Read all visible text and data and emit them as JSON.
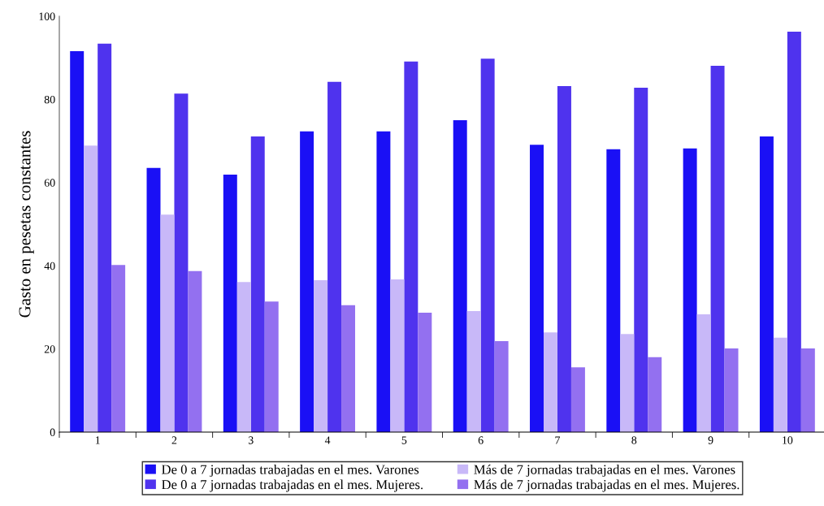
{
  "chart_data": {
    "type": "bar",
    "ylabel": "Gasto en pesetas constantes",
    "categories": [
      "1",
      "2",
      "3",
      "4",
      "5",
      "6",
      "7",
      "8",
      "9",
      "10"
    ],
    "series": [
      {
        "name": "De 0 a 7 jornadas trabajadas en el mes. Varones",
        "color": "#1a10f5",
        "values": [
          91.6,
          63.5,
          61.9,
          72.3,
          72.3,
          75.0,
          69.1,
          68.0,
          68.2,
          71.1
        ]
      },
      {
        "name": "De 0 a 7 jornadas trabajadas en el mes. Mujeres.",
        "color": "#4f33ee",
        "values": [
          93.4,
          81.4,
          71.1,
          84.2,
          89.1,
          89.8,
          83.2,
          82.8,
          88.1,
          96.3
        ]
      },
      {
        "name": "Más de 7 jornadas trabajadas en el mes. Varones",
        "color": "#c8b8f8",
        "values": [
          68.9,
          52.3,
          36.1,
          36.5,
          36.7,
          29.1,
          24.0,
          23.6,
          28.3,
          22.7
        ]
      },
      {
        "name": "Más de 7 jornadas trabajadas en el mes. Mujeres.",
        "color": "#9370f0",
        "values": [
          40.2,
          38.7,
          31.4,
          30.5,
          28.7,
          21.9,
          15.6,
          18.0,
          20.1,
          20.1
        ]
      }
    ],
    "ylim": [
      0,
      100
    ],
    "yticks": [
      0,
      20,
      40,
      60,
      80,
      100
    ],
    "grid": false,
    "legend": "bottom"
  }
}
